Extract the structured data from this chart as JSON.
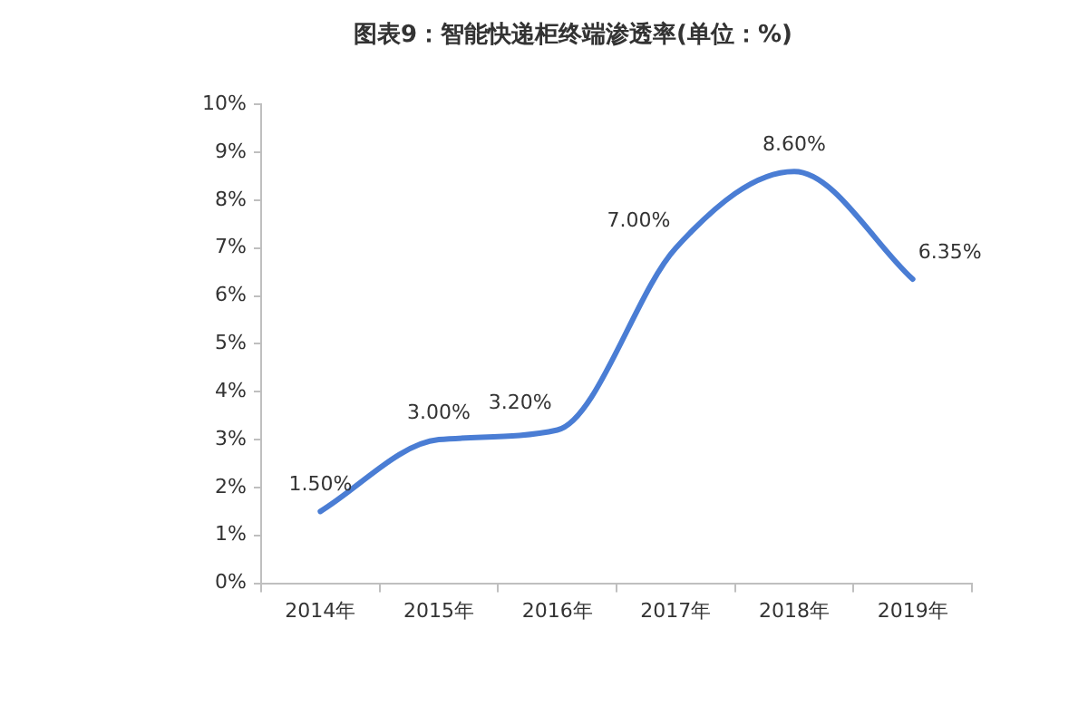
{
  "chart_data": {
    "type": "line",
    "title": "图表9：智能快递柜终端渗透率(单位：%)",
    "categories": [
      "2014年",
      "2015年",
      "2016年",
      "2017年",
      "2018年",
      "2019年"
    ],
    "values": [
      1.5,
      3.0,
      3.2,
      7.0,
      8.6,
      6.35
    ],
    "color": "#4a7dd4",
    "value_labels": [
      "1.50%",
      "3.00%",
      "3.20%",
      "7.00%",
      "8.60%",
      "6.35%"
    ],
    "ylim": [
      0,
      10
    ],
    "yticks": [
      {
        "value": 0,
        "label": "0%"
      },
      {
        "value": 1,
        "label": "1%"
      },
      {
        "value": 2,
        "label": "2%"
      },
      {
        "value": 3,
        "label": "3%"
      },
      {
        "value": 4,
        "label": "4%"
      },
      {
        "value": 5,
        "label": "5%"
      },
      {
        "value": 6,
        "label": "6%"
      },
      {
        "value": 7,
        "label": "7%"
      },
      {
        "value": 8,
        "label": "8%"
      },
      {
        "value": 9,
        "label": "9%"
      },
      {
        "value": 10,
        "label": "10%"
      }
    ],
    "marker": "none"
  }
}
